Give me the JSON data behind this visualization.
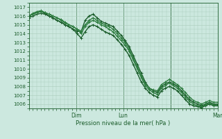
{
  "title": "Pression niveau de la mer( hPa )",
  "ylabel_values": [
    1006,
    1007,
    1008,
    1009,
    1010,
    1011,
    1012,
    1013,
    1014,
    1015,
    1016,
    1017
  ],
  "ylim": [
    1005.5,
    1017.5
  ],
  "xlim": [
    0,
    96
  ],
  "bg_color": "#cce8df",
  "grid_color": "#aaccbb",
  "line_color_dark": "#1a5c2a",
  "line_color_mid": "#2e7d40",
  "series": [
    [
      1016.0,
      1016.2,
      1016.4,
      1016.5,
      1016.3,
      1016.0,
      1015.8,
      1015.5,
      1015.3,
      1015.0,
      1014.8,
      1014.5,
      1014.3,
      1014.2,
      1015.5,
      1016.0,
      1016.2,
      1015.8,
      1015.4,
      1015.2,
      1015.0,
      1014.8,
      1014.3,
      1013.8,
      1013.2,
      1012.5,
      1011.5,
      1010.5,
      1009.5,
      1008.5,
      1007.8,
      1007.5,
      1007.3,
      1008.0,
      1008.3,
      1008.5,
      1008.3,
      1008.0,
      1007.5,
      1007.0,
      1006.5,
      1006.2,
      1006.0,
      1005.8,
      1006.0,
      1006.2,
      1006.0,
      1006.0
    ],
    [
      1016.0,
      1016.3,
      1016.5,
      1016.6,
      1016.4,
      1016.2,
      1016.0,
      1015.8,
      1015.6,
      1015.3,
      1015.0,
      1014.8,
      1014.5,
      1014.3,
      1015.0,
      1015.5,
      1015.8,
      1015.5,
      1015.2,
      1015.0,
      1014.8,
      1014.5,
      1014.0,
      1013.5,
      1013.0,
      1012.2,
      1011.2,
      1010.2,
      1009.2,
      1008.3,
      1007.8,
      1007.6,
      1007.5,
      1008.2,
      1008.5,
      1008.8,
      1008.5,
      1008.2,
      1007.8,
      1007.3,
      1006.8,
      1006.4,
      1006.2,
      1006.0,
      1006.2,
      1006.4,
      1006.2,
      1006.2
    ],
    [
      1015.8,
      1016.0,
      1016.2,
      1016.3,
      1016.2,
      1016.0,
      1015.8,
      1015.5,
      1015.3,
      1015.0,
      1014.8,
      1014.5,
      1014.0,
      1013.5,
      1014.2,
      1014.8,
      1015.0,
      1014.8,
      1014.5,
      1014.2,
      1014.0,
      1013.8,
      1013.3,
      1012.8,
      1012.2,
      1011.5,
      1010.5,
      1009.5,
      1008.5,
      1007.8,
      1007.3,
      1007.0,
      1006.8,
      1007.5,
      1007.8,
      1008.0,
      1007.8,
      1007.5,
      1007.0,
      1006.5,
      1006.0,
      1005.8,
      1005.7,
      1005.6,
      1005.8,
      1006.0,
      1005.8,
      1005.8
    ],
    [
      1016.0,
      1016.2,
      1016.4,
      1016.5,
      1016.4,
      1016.2,
      1016.0,
      1015.8,
      1015.5,
      1015.2,
      1015.0,
      1014.8,
      1014.5,
      1014.0,
      1014.8,
      1015.3,
      1015.5,
      1015.3,
      1015.0,
      1014.8,
      1014.5,
      1014.2,
      1013.7,
      1013.2,
      1012.7,
      1012.0,
      1011.0,
      1010.0,
      1009.0,
      1008.1,
      1007.6,
      1007.3,
      1007.1,
      1007.8,
      1008.1,
      1008.4,
      1008.1,
      1007.8,
      1007.3,
      1006.8,
      1006.3,
      1006.0,
      1005.8,
      1005.7,
      1005.9,
      1006.1,
      1005.9,
      1005.9
    ]
  ]
}
